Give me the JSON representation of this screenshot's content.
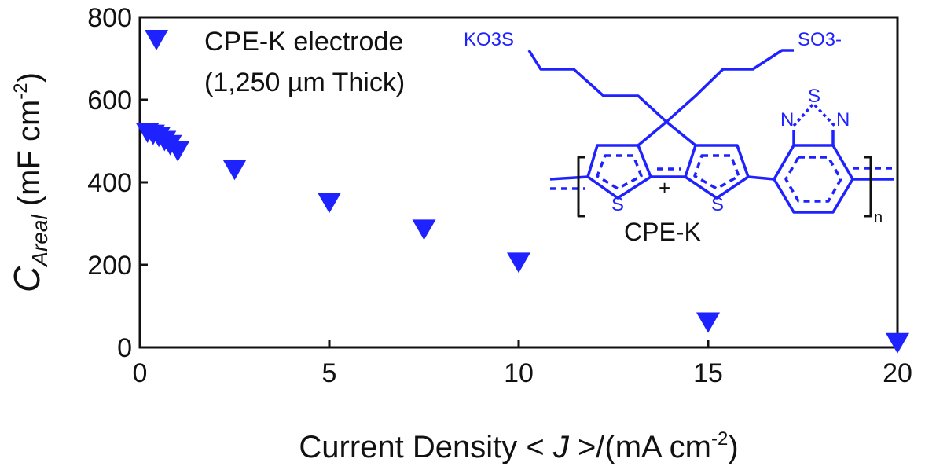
{
  "chart_data": {
    "type": "scatter",
    "xlabel": {
      "prefix": "Current Density < ",
      "var": "J",
      "suffix": " >/(mA cm",
      "sup": "-2",
      "close": ")"
    },
    "ylabel": {
      "main": "C",
      "sub": "Areal",
      "unit": " (mF cm",
      "sup": "-2",
      "close": ")"
    },
    "xlim": [
      0,
      20
    ],
    "ylim": [
      0,
      800
    ],
    "x_ticks": [
      "0",
      "5",
      "10",
      "15",
      "20"
    ],
    "y_ticks": [
      "0",
      "200",
      "400",
      "600",
      "800"
    ],
    "grid": false,
    "legend_position": "top-left",
    "series": [
      {
        "name": "CPE-K electrode",
        "name_line2": "(1,250 µm Thick)",
        "marker": "triangle-down",
        "color": "#1e22ff",
        "x": [
          0.2,
          0.35,
          0.5,
          0.65,
          0.8,
          1.0,
          2.5,
          5.0,
          7.5,
          10.0,
          15.0,
          20.0
        ],
        "y": [
          520,
          515,
          510,
          500,
          490,
          475,
          430,
          350,
          285,
          205,
          60,
          10
        ]
      }
    ],
    "inset": {
      "caption": "CPE-K",
      "labels": {
        "ko3s": "KO3S",
        "so3": "SO3-",
        "n_left": "N",
        "s_top": "S",
        "n_right": "N",
        "s_left": "S",
        "s_right": "S",
        "plus": "+",
        "n_sub": "n"
      },
      "color": "#1e22ff"
    }
  }
}
